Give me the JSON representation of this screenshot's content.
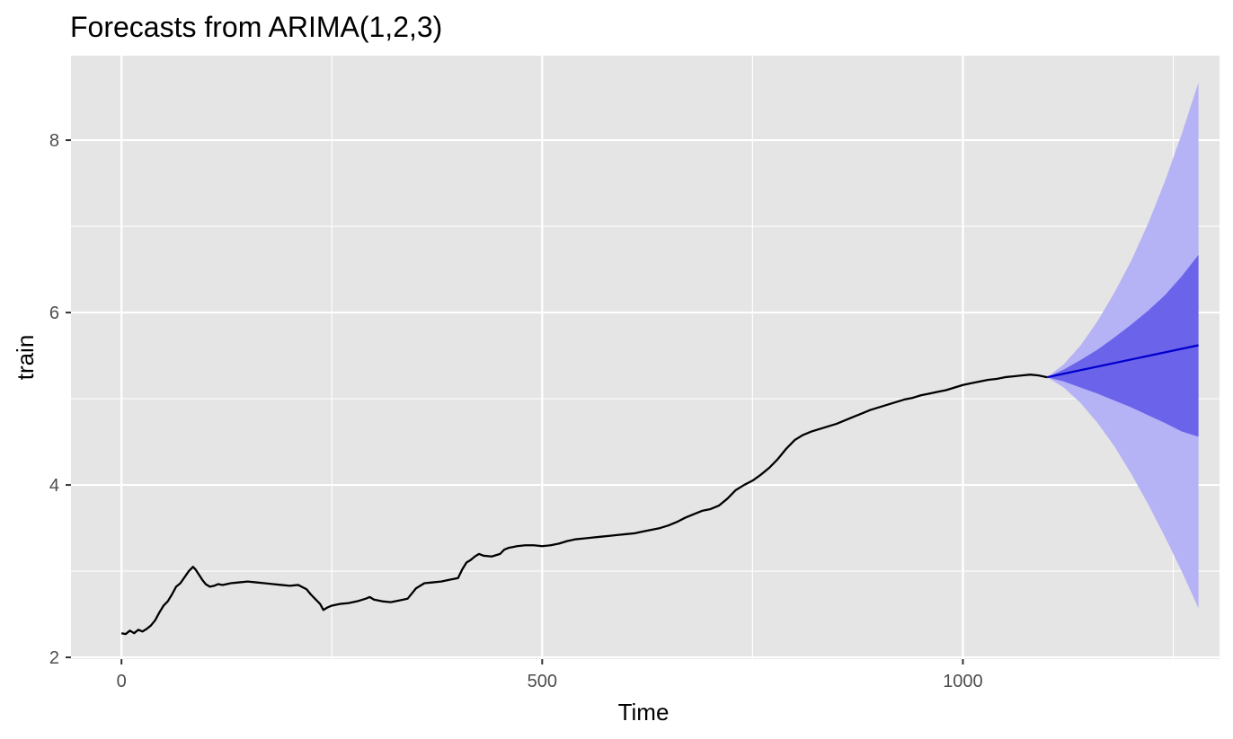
{
  "chart_data": {
    "type": "line",
    "title": "Forecasts from ARIMA(1,2,3)",
    "xlabel": "Time",
    "ylabel": "train",
    "xlim": [
      -60,
      1305
    ],
    "ylim": [
      1.98,
      8.98
    ],
    "x_ticks": [
      0,
      500,
      1000
    ],
    "x_tick_labels": [
      "0",
      "500",
      "1000"
    ],
    "y_ticks": [
      2,
      4,
      6,
      8
    ],
    "y_tick_labels": [
      "2",
      "4",
      "6",
      "8"
    ],
    "grid": true,
    "legend": "none",
    "colors": {
      "panel_background": "#e5e5e5",
      "grid": "#ffffff",
      "history_line": "#000000",
      "forecast_line": "#0000cc",
      "band_80": "#6b63ea",
      "band_95": "#b5b3f5"
    },
    "series": [
      {
        "name": "train",
        "x": [
          0,
          5,
          10,
          15,
          20,
          25,
          30,
          35,
          40,
          45,
          50,
          55,
          60,
          65,
          70,
          75,
          80,
          85,
          88,
          92,
          96,
          100,
          105,
          110,
          115,
          120,
          130,
          140,
          150,
          160,
          170,
          180,
          190,
          200,
          210,
          220,
          225,
          230,
          236,
          240,
          245,
          250,
          260,
          270,
          280,
          290,
          295,
          300,
          310,
          320,
          330,
          340,
          345,
          350,
          355,
          360,
          370,
          380,
          390,
          400,
          405,
          410,
          415,
          420,
          425,
          430,
          440,
          450,
          455,
          460,
          465,
          470,
          480,
          490,
          500,
          510,
          520,
          530,
          540,
          550,
          560,
          570,
          580,
          590,
          600,
          610,
          620,
          630,
          640,
          650,
          660,
          670,
          680,
          690,
          700,
          710,
          720,
          730,
          740,
          750,
          760,
          770,
          780,
          790,
          800,
          810,
          820,
          830,
          840,
          850,
          860,
          870,
          880,
          890,
          900,
          910,
          920,
          930,
          940,
          950,
          960,
          970,
          980,
          990,
          1000,
          1010,
          1020,
          1030,
          1040,
          1050,
          1060,
          1070,
          1080,
          1090,
          1100
        ],
        "values": [
          2.28,
          2.27,
          2.31,
          2.28,
          2.32,
          2.3,
          2.33,
          2.37,
          2.43,
          2.52,
          2.6,
          2.65,
          2.73,
          2.82,
          2.86,
          2.93,
          3.0,
          3.05,
          3.02,
          2.96,
          2.9,
          2.85,
          2.82,
          2.83,
          2.85,
          2.84,
          2.86,
          2.87,
          2.88,
          2.87,
          2.86,
          2.85,
          2.84,
          2.83,
          2.84,
          2.79,
          2.73,
          2.68,
          2.62,
          2.55,
          2.58,
          2.6,
          2.62,
          2.63,
          2.65,
          2.68,
          2.7,
          2.67,
          2.65,
          2.64,
          2.66,
          2.68,
          2.74,
          2.8,
          2.83,
          2.86,
          2.87,
          2.88,
          2.9,
          2.92,
          3.02,
          3.1,
          3.13,
          3.17,
          3.2,
          3.18,
          3.17,
          3.2,
          3.25,
          3.27,
          3.28,
          3.29,
          3.3,
          3.3,
          3.29,
          3.3,
          3.32,
          3.35,
          3.37,
          3.38,
          3.39,
          3.4,
          3.41,
          3.42,
          3.43,
          3.44,
          3.46,
          3.48,
          3.5,
          3.53,
          3.57,
          3.62,
          3.66,
          3.7,
          3.72,
          3.76,
          3.84,
          3.94,
          4.0,
          4.05,
          4.12,
          4.2,
          4.3,
          4.42,
          4.52,
          4.58,
          4.62,
          4.65,
          4.68,
          4.71,
          4.75,
          4.79,
          4.83,
          4.87,
          4.9,
          4.93,
          4.96,
          4.99,
          5.01,
          5.04,
          5.06,
          5.08,
          5.1,
          5.13,
          5.16,
          5.18,
          5.2,
          5.22,
          5.23,
          5.25,
          5.26,
          5.27,
          5.28,
          5.27,
          5.25
        ]
      },
      {
        "name": "forecast",
        "x": [
          1100,
          1280
        ],
        "values": [
          5.25,
          5.62
        ]
      }
    ],
    "intervals": [
      {
        "level": 80,
        "x": [
          1100,
          1120,
          1140,
          1160,
          1180,
          1200,
          1220,
          1240,
          1260,
          1280
        ],
        "lower": [
          5.25,
          5.2,
          5.13,
          5.06,
          4.98,
          4.9,
          4.81,
          4.72,
          4.62,
          4.56
        ],
        "upper": [
          5.25,
          5.34,
          5.45,
          5.57,
          5.71,
          5.86,
          6.02,
          6.2,
          6.42,
          6.67
        ]
      },
      {
        "level": 95,
        "x": [
          1100,
          1120,
          1140,
          1160,
          1180,
          1200,
          1220,
          1240,
          1260,
          1280
        ],
        "lower": [
          5.25,
          5.13,
          4.95,
          4.72,
          4.45,
          4.13,
          3.78,
          3.4,
          3.0,
          2.57
        ],
        "upper": [
          5.25,
          5.4,
          5.62,
          5.9,
          6.23,
          6.6,
          7.03,
          7.52,
          8.07,
          8.67
        ]
      }
    ]
  }
}
